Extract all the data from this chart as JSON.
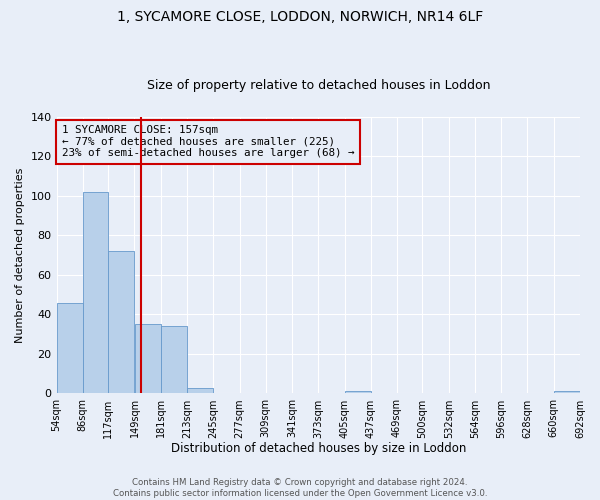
{
  "title": "1, SYCAMORE CLOSE, LODDON, NORWICH, NR14 6LF",
  "subtitle": "Size of property relative to detached houses in Loddon",
  "xlabel": "Distribution of detached houses by size in Loddon",
  "ylabel": "Number of detached properties",
  "bin_edges": [
    54,
    86,
    117,
    149,
    181,
    213,
    245,
    277,
    309,
    341,
    373,
    405,
    437,
    469,
    500,
    532,
    564,
    596,
    628,
    660,
    692
  ],
  "bar_heights": [
    46,
    102,
    72,
    35,
    34,
    3,
    0,
    0,
    0,
    0,
    0,
    1,
    0,
    0,
    0,
    0,
    0,
    0,
    0,
    1
  ],
  "bar_color": "#b8d0ea",
  "bar_edgecolor": "#6699cc",
  "vline_x": 157,
  "vline_color": "#cc0000",
  "annotation_text": "1 SYCAMORE CLOSE: 157sqm\n← 77% of detached houses are smaller (225)\n23% of semi-detached houses are larger (68) →",
  "annotation_box_edgecolor": "#cc0000",
  "ylim": [
    0,
    140
  ],
  "yticks": [
    0,
    20,
    40,
    60,
    80,
    100,
    120,
    140
  ],
  "footer_line1": "Contains HM Land Registry data © Crown copyright and database right 2024.",
  "footer_line2": "Contains public sector information licensed under the Open Government Licence v3.0.",
  "bg_color": "#e8eef8",
  "grid_color": "#ffffff",
  "title_fontsize": 10,
  "subtitle_fontsize": 9,
  "tick_label_fontsize": 7,
  "ylabel_fontsize": 8,
  "xlabel_fontsize": 8.5
}
